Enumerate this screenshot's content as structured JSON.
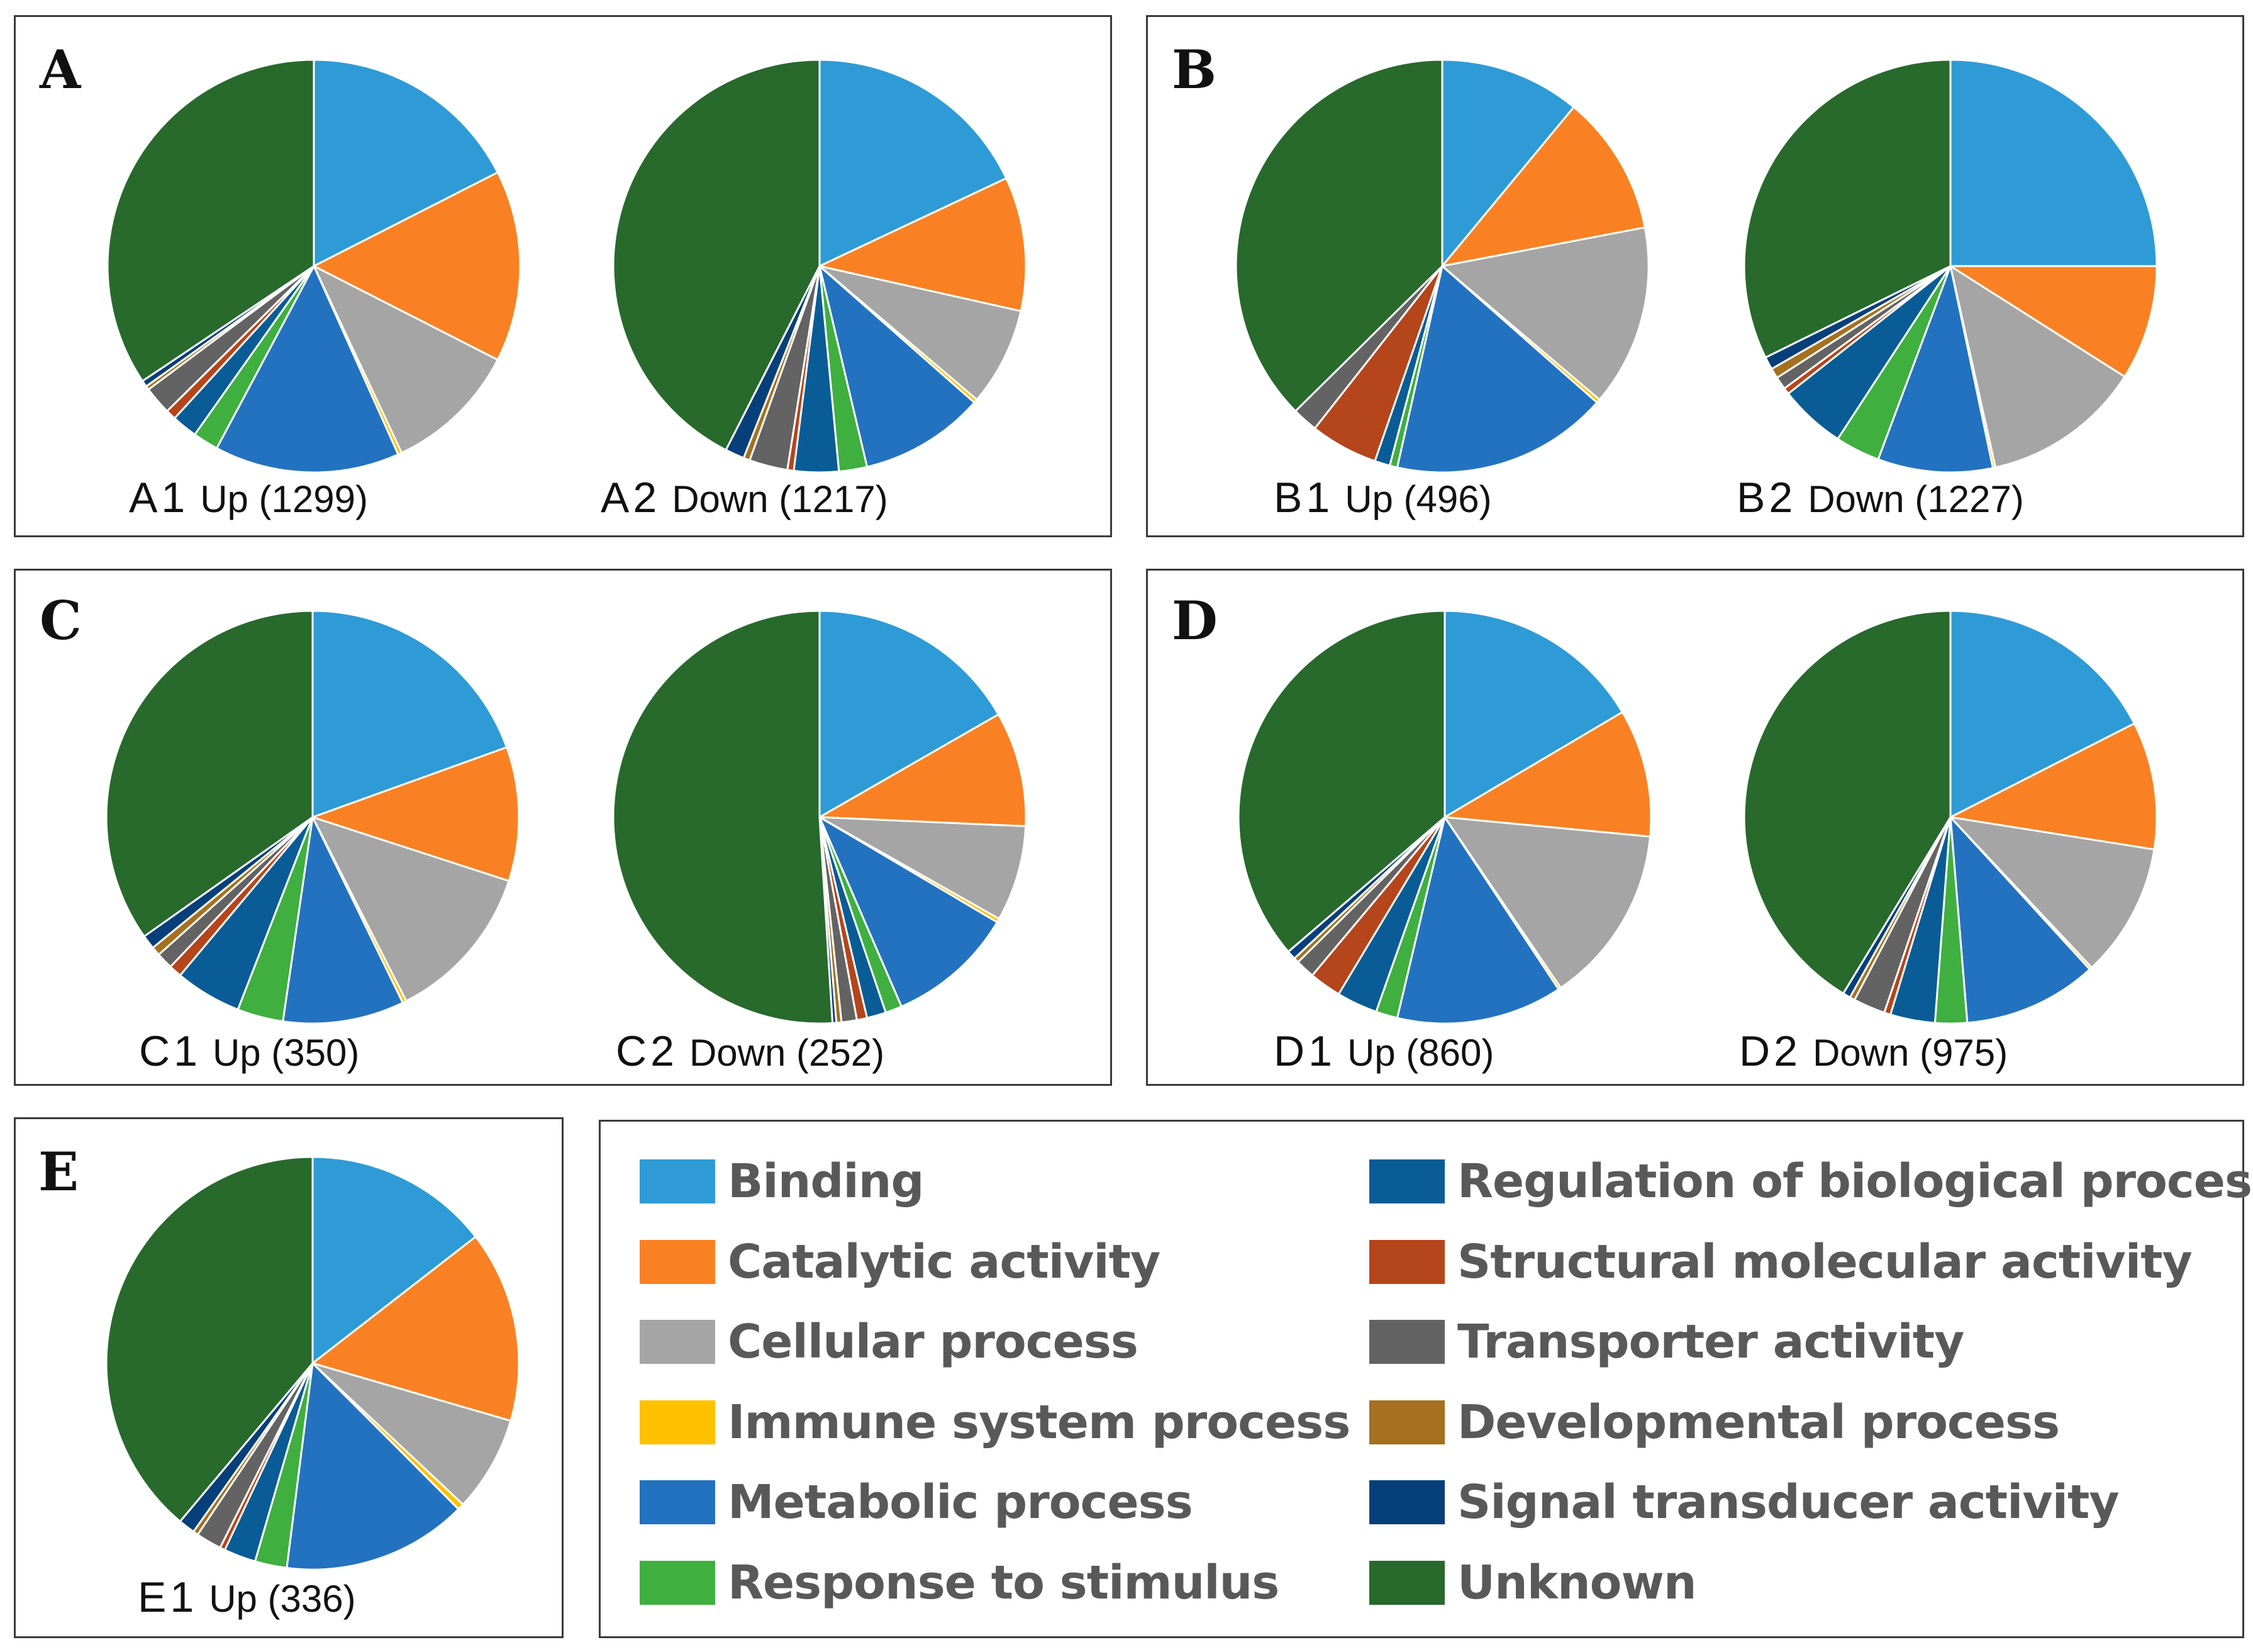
{
  "categories": [
    {
      "name": "Binding",
      "color": "#2E9BD6"
    },
    {
      "name": "Catalytic activity",
      "color": "#F98123"
    },
    {
      "name": "Cellular process",
      "color": "#A5A5A5"
    },
    {
      "name": "Immune system process",
      "color": "#FFC000"
    },
    {
      "name": "Metabolic process",
      "color": "#2372C0"
    },
    {
      "name": "Response to stimulus",
      "color": "#3FAF3F"
    },
    {
      "name": "Regulation of biological process",
      "color": "#0A5C96"
    },
    {
      "name": "Structural molecular activity",
      "color": "#B5451B"
    },
    {
      "name": "Transporter activity",
      "color": "#636363"
    },
    {
      "name": "Developmental process",
      "color": "#A5701F"
    },
    {
      "name": "Signal transducer activity",
      "color": "#073F7A"
    },
    {
      "name": "Unknown",
      "color": "#276A2C"
    }
  ],
  "panels": [
    {
      "letter": "A",
      "pies": [
        {
          "code": "A1",
          "desc": "Up (1299)"
        },
        {
          "code": "A2",
          "desc": "Down (1217)"
        }
      ]
    },
    {
      "letter": "B",
      "pies": [
        {
          "code": "B1",
          "desc": "Up (496)"
        },
        {
          "code": "B2",
          "desc": "Down (1227)"
        }
      ]
    },
    {
      "letter": "C",
      "pies": [
        {
          "code": "C1",
          "desc": "Up (350)"
        },
        {
          "code": "C2",
          "desc": "Down (252)"
        }
      ]
    },
    {
      "letter": "D",
      "pies": [
        {
          "code": "D1",
          "desc": "Up (860)"
        },
        {
          "code": "D2",
          "desc": "Down (975)"
        }
      ]
    },
    {
      "letter": "E",
      "pies": [
        {
          "code": "E1",
          "desc": "Up (336)"
        }
      ]
    }
  ],
  "chart_data": [
    {
      "type": "pie",
      "title": "A1 Up (1299)",
      "labels": [
        "Binding",
        "Catalytic activity",
        "Cellular process",
        "Immune system process",
        "Metabolic process",
        "Response to stimulus",
        "Regulation of biological process",
        "Structural molecular activity",
        "Transporter activity",
        "Developmental process",
        "Signal transducer activity",
        "Unknown"
      ],
      "values": [
        17.5,
        15.0,
        10.5,
        0.3,
        14.5,
        2.0,
        2.0,
        0.8,
        2.2,
        0.3,
        0.5,
        34.4
      ]
    },
    {
      "type": "pie",
      "title": "A2 Down (1217)",
      "labels": [
        "Binding",
        "Catalytic activity",
        "Cellular process",
        "Immune system process",
        "Metabolic process",
        "Response to stimulus",
        "Regulation of biological process",
        "Structural molecular activity",
        "Transporter activity",
        "Developmental process",
        "Signal transducer activity",
        "Unknown"
      ],
      "values": [
        18.0,
        10.5,
        7.7,
        0.3,
        9.8,
        2.2,
        3.5,
        0.5,
        3.0,
        0.5,
        1.5,
        42.5
      ]
    },
    {
      "type": "pie",
      "title": "B1 Up (496)",
      "labels": [
        "Binding",
        "Catalytic activity",
        "Cellular process",
        "Immune system process",
        "Metabolic process",
        "Response to stimulus",
        "Regulation of biological process",
        "Structural molecular activity",
        "Transporter activity",
        "Developmental process",
        "Signal transducer activity",
        "Unknown"
      ],
      "values": [
        11.0,
        11.0,
        14.2,
        0.3,
        17.0,
        0.6,
        1.2,
        5.3,
        2.0,
        0.0,
        0.0,
        37.4
      ]
    },
    {
      "type": "pie",
      "title": "B2 Down (1227)",
      "labels": [
        "Binding",
        "Catalytic activity",
        "Cellular process",
        "Immune system process",
        "Metabolic process",
        "Response to stimulus",
        "Regulation of biological process",
        "Structural molecular activity",
        "Transporter activity",
        "Developmental process",
        "Signal transducer activity",
        "Unknown"
      ],
      "values": [
        25.0,
        9.0,
        12.5,
        0.2,
        9.0,
        3.5,
        5.2,
        0.5,
        1.0,
        0.8,
        1.0,
        32.3
      ]
    },
    {
      "type": "pie",
      "title": "C1 Up (350)",
      "labels": [
        "Binding",
        "Catalytic activity",
        "Cellular process",
        "Immune system process",
        "Metabolic process",
        "Response to stimulus",
        "Regulation of biological process",
        "Structural molecular activity",
        "Transporter activity",
        "Developmental process",
        "Signal transducer activity",
        "Unknown"
      ],
      "values": [
        19.5,
        10.5,
        12.5,
        0.3,
        9.5,
        3.6,
        5.2,
        1.0,
        1.3,
        0.7,
        1.1,
        34.8
      ]
    },
    {
      "type": "pie",
      "title": "C2 Down (252)",
      "labels": [
        "Binding",
        "Catalytic activity",
        "Cellular process",
        "Immune system process",
        "Metabolic process",
        "Response to stimulus",
        "Regulation of biological process",
        "Structural molecular activity",
        "Transporter activity",
        "Developmental process",
        "Signal transducer activity",
        "Unknown"
      ],
      "values": [
        16.7,
        9.0,
        7.5,
        0.3,
        10.0,
        1.3,
        1.5,
        0.8,
        1.2,
        0.4,
        0.3,
        51.0
      ]
    },
    {
      "type": "pie",
      "title": "D1 Up (860)",
      "labels": [
        "Binding",
        "Catalytic activity",
        "Cellular process",
        "Immune system process",
        "Metabolic process",
        "Response to stimulus",
        "Regulation of biological process",
        "Structural molecular activity",
        "Transporter activity",
        "Developmental process",
        "Signal transducer activity",
        "Unknown"
      ],
      "values": [
        16.5,
        10.0,
        14.0,
        0.2,
        13.0,
        1.7,
        3.2,
        2.5,
        1.5,
        0.4,
        0.7,
        36.3
      ]
    },
    {
      "type": "pie",
      "title": "D2 Down (975)",
      "labels": [
        "Binding",
        "Catalytic activity",
        "Cellular process",
        "Immune system process",
        "Metabolic process",
        "Response to stimulus",
        "Regulation of biological process",
        "Structural molecular activity",
        "Transporter activity",
        "Developmental process",
        "Signal transducer activity",
        "Unknown"
      ],
      "values": [
        17.5,
        10.0,
        10.5,
        0.2,
        10.5,
        2.5,
        3.5,
        0.5,
        2.5,
        0.4,
        0.6,
        41.3
      ]
    },
    {
      "type": "pie",
      "title": "E1 Up (336)",
      "labels": [
        "Binding",
        "Catalytic activity",
        "Cellular process",
        "Immune system process",
        "Metabolic process",
        "Response to stimulus",
        "Regulation of biological process",
        "Structural molecular activity",
        "Transporter activity",
        "Developmental process",
        "Signal transducer activity",
        "Unknown"
      ],
      "values": [
        14.5,
        15.0,
        7.5,
        0.5,
        14.5,
        2.5,
        2.5,
        0.4,
        2.0,
        0.4,
        1.3,
        38.9
      ]
    }
  ]
}
